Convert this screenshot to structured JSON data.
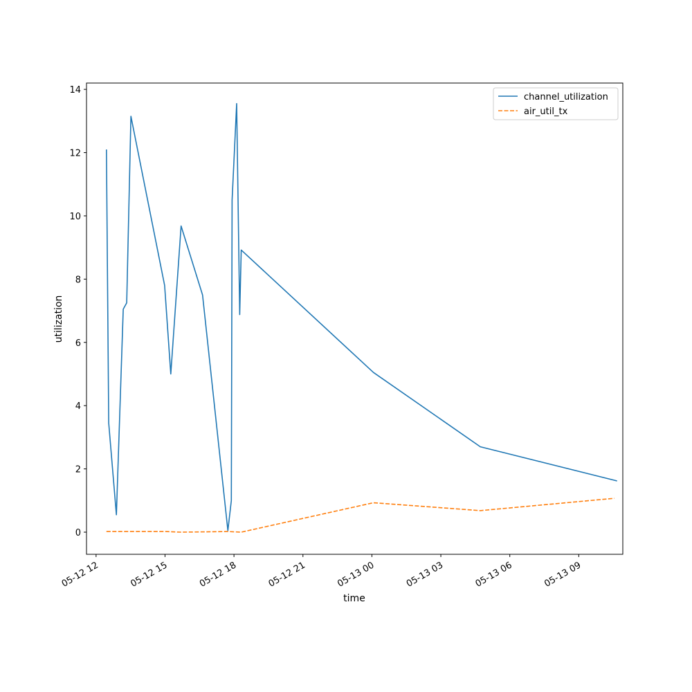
{
  "chart_data": {
    "type": "line",
    "xlabel": "time",
    "ylabel": "utilization",
    "x_ticks": [
      "05-12 12",
      "05-12 15",
      "05-12 18",
      "05-12 21",
      "05-13 00",
      "05-13 03",
      "05-13 06",
      "05-13 09"
    ],
    "y_ticks": [
      "0",
      "2",
      "4",
      "6",
      "8",
      "10",
      "12",
      "14"
    ],
    "xlim": [
      "2024-05-12 11:35",
      "2024-05-13 10:55"
    ],
    "ylim": [
      -0.7,
      14.2
    ],
    "legend_position": "top-right",
    "grid": false,
    "series": [
      {
        "name": "channel_utilization",
        "color": "#1f77b4",
        "linestyle": "solid",
        "points": [
          {
            "x": "2024-05-12 12:27",
            "y": 12.1
          },
          {
            "x": "2024-05-12 12:33",
            "y": 3.45
          },
          {
            "x": "2024-05-12 12:53",
            "y": 0.55
          },
          {
            "x": "2024-05-12 13:11",
            "y": 7.05
          },
          {
            "x": "2024-05-12 13:20",
            "y": 7.25
          },
          {
            "x": "2024-05-12 13:31",
            "y": 13.15
          },
          {
            "x": "2024-05-12 14:59",
            "y": 7.8
          },
          {
            "x": "2024-05-12 15:15",
            "y": 5.0
          },
          {
            "x": "2024-05-12 15:42",
            "y": 9.68
          },
          {
            "x": "2024-05-12 16:38",
            "y": 7.5
          },
          {
            "x": "2024-05-12 17:44",
            "y": 0.05
          },
          {
            "x": "2024-05-12 17:53",
            "y": 1.0
          },
          {
            "x": "2024-05-12 17:55",
            "y": 10.5
          },
          {
            "x": "2024-05-12 18:07",
            "y": 13.55
          },
          {
            "x": "2024-05-12 18:15",
            "y": 6.88
          },
          {
            "x": "2024-05-12 18:19",
            "y": 8.92
          },
          {
            "x": "2024-05-13 00:04",
            "y": 5.05
          },
          {
            "x": "2024-05-13 04:43",
            "y": 2.7
          },
          {
            "x": "2024-05-13 10:40",
            "y": 1.62
          }
        ]
      },
      {
        "name": "air_util_tx",
        "color": "#ff7f0e",
        "linestyle": "dashed",
        "points": [
          {
            "x": "2024-05-12 12:27",
            "y": 0.02
          },
          {
            "x": "2024-05-12 15:00",
            "y": 0.02
          },
          {
            "x": "2024-05-12 15:42",
            "y": 0.0
          },
          {
            "x": "2024-05-12 17:44",
            "y": 0.02
          },
          {
            "x": "2024-05-12 18:19",
            "y": 0.0
          },
          {
            "x": "2024-05-13 00:04",
            "y": 0.93
          },
          {
            "x": "2024-05-13 04:43",
            "y": 0.68
          },
          {
            "x": "2024-05-13 10:33",
            "y": 1.07
          }
        ]
      }
    ]
  }
}
